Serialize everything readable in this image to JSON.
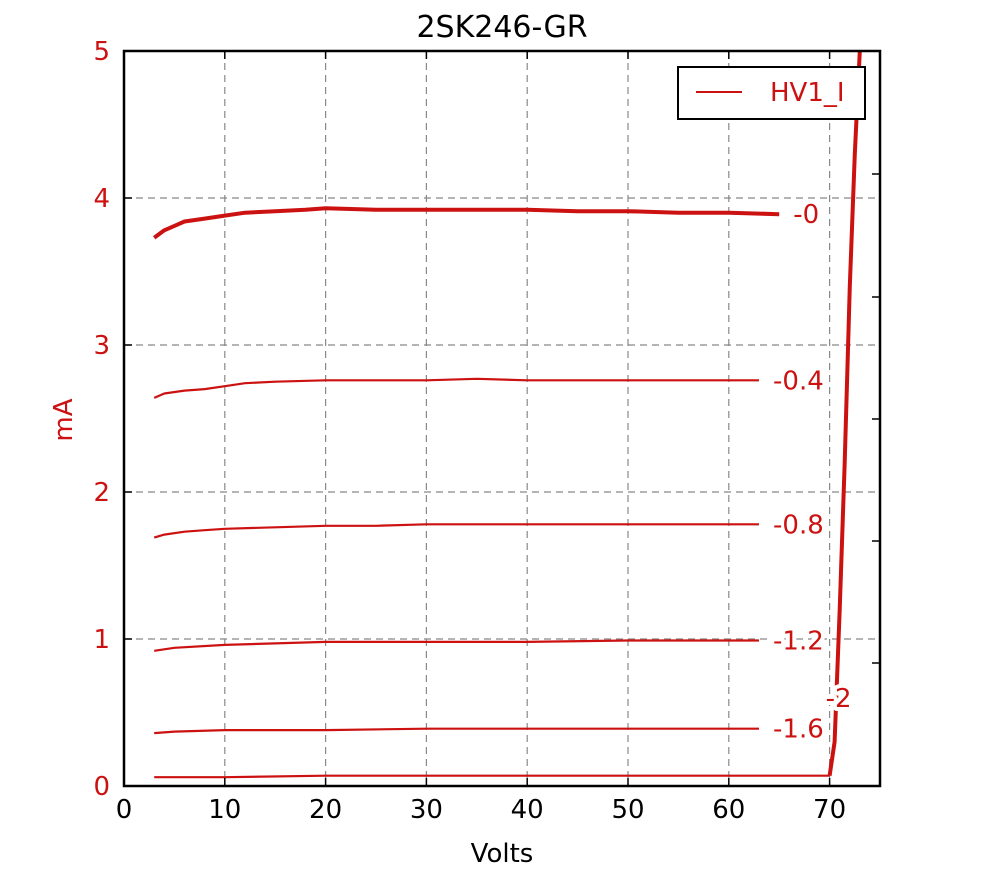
{
  "chart_data": {
    "type": "line",
    "title": "2SK246-GR",
    "xlabel": "Volts",
    "ylabel": "mA",
    "xlim": [
      0,
      75
    ],
    "ylim": [
      0,
      5
    ],
    "x_ticks": [
      "0",
      "10",
      "20",
      "30",
      "40",
      "50",
      "60",
      "70"
    ],
    "y_ticks": [
      "0",
      "1",
      "2",
      "3",
      "4",
      "5"
    ],
    "grid": true,
    "legend": {
      "position": "top-right",
      "entries": [
        "HV1_I"
      ]
    },
    "color": "#cc1111",
    "series": [
      {
        "label": "-0",
        "emphasis": true,
        "x": [
          3,
          4,
          5,
          6,
          8,
          10,
          12,
          15,
          18,
          20,
          25,
          30,
          35,
          40,
          45,
          50,
          55,
          60,
          65
        ],
        "y": [
          3.73,
          3.78,
          3.81,
          3.84,
          3.86,
          3.88,
          3.9,
          3.91,
          3.92,
          3.93,
          3.92,
          3.92,
          3.92,
          3.92,
          3.91,
          3.91,
          3.9,
          3.9,
          3.89
        ]
      },
      {
        "label": "-0.4",
        "x": [
          3,
          4,
          6,
          8,
          10,
          12,
          15,
          20,
          25,
          30,
          35,
          40,
          45,
          50,
          55,
          60,
          63
        ],
        "y": [
          2.64,
          2.67,
          2.69,
          2.7,
          2.72,
          2.74,
          2.75,
          2.76,
          2.76,
          2.76,
          2.77,
          2.76,
          2.76,
          2.76,
          2.76,
          2.76,
          2.76
        ]
      },
      {
        "label": "-0.8",
        "x": [
          3,
          4,
          6,
          8,
          10,
          15,
          20,
          25,
          30,
          35,
          40,
          45,
          50,
          55,
          60,
          63
        ],
        "y": [
          1.69,
          1.71,
          1.73,
          1.74,
          1.75,
          1.76,
          1.77,
          1.77,
          1.78,
          1.78,
          1.78,
          1.78,
          1.78,
          1.78,
          1.78,
          1.78
        ]
      },
      {
        "label": "-1.2",
        "x": [
          3,
          5,
          10,
          15,
          20,
          25,
          30,
          40,
          50,
          60,
          63
        ],
        "y": [
          0.92,
          0.94,
          0.96,
          0.97,
          0.98,
          0.98,
          0.98,
          0.98,
          0.99,
          0.99,
          0.99
        ]
      },
      {
        "label": "-1.6",
        "x": [
          3,
          5,
          10,
          20,
          30,
          40,
          50,
          60,
          63
        ],
        "y": [
          0.36,
          0.37,
          0.38,
          0.38,
          0.39,
          0.39,
          0.39,
          0.39,
          0.39
        ]
      },
      {
        "label": "-2",
        "x": [
          3,
          10,
          20,
          30,
          40,
          50,
          60,
          66,
          70
        ],
        "y": [
          0.06,
          0.06,
          0.07,
          0.07,
          0.07,
          0.07,
          0.07,
          0.07,
          0.07
        ]
      }
    ],
    "breakdown_trace": {
      "x": [
        70,
        70.5,
        71.0,
        71.5,
        72.0,
        72.5,
        73.0
      ],
      "y": [
        0.07,
        0.3,
        1.2,
        2.2,
        3.4,
        4.3,
        5.0
      ]
    }
  }
}
